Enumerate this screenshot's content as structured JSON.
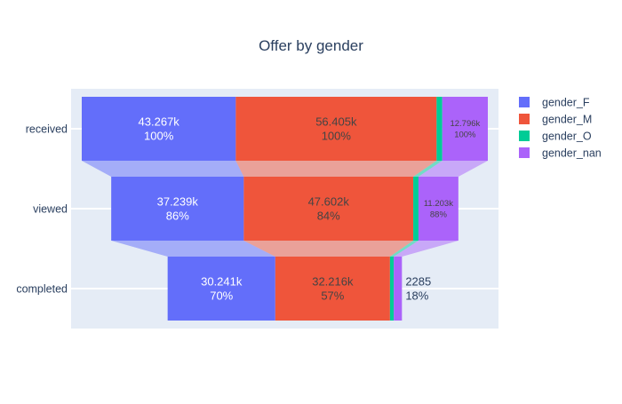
{
  "chart_data": {
    "type": "funnel",
    "title": "Offer by gender",
    "stages": [
      "received",
      "viewed",
      "completed"
    ],
    "series": [
      {
        "name": "gender_F",
        "color": "#636efa",
        "values": [
          43267,
          37239,
          30241
        ],
        "value_labels": [
          "43.267k",
          "37.239k",
          "30.241k"
        ],
        "percent_labels": [
          "100%",
          "86%",
          "70%"
        ]
      },
      {
        "name": "gender_M",
        "color": "#ef553b",
        "values": [
          56405,
          47602,
          32216
        ],
        "value_labels": [
          "56.405k",
          "47.602k",
          "32.216k"
        ],
        "percent_labels": [
          "100%",
          "84%",
          "57%"
        ]
      },
      {
        "name": "gender_O",
        "color": "#00cc96",
        "values": [
          1597,
          1469,
          1070
        ],
        "value_labels": [
          "",
          "",
          ""
        ],
        "percent_labels": [
          "",
          "",
          ""
        ]
      },
      {
        "name": "gender_nan",
        "color": "#ab63fa",
        "values": [
          12796,
          11203,
          2285
        ],
        "value_labels": [
          "12.796k",
          "11.203k",
          "2285"
        ],
        "percent_labels": [
          "100%",
          "88%",
          "18%"
        ]
      }
    ],
    "grid": true,
    "legend_position": "top-right",
    "plot_background": "#e5ecf6",
    "axis_text_color": "#2a3f5f"
  }
}
